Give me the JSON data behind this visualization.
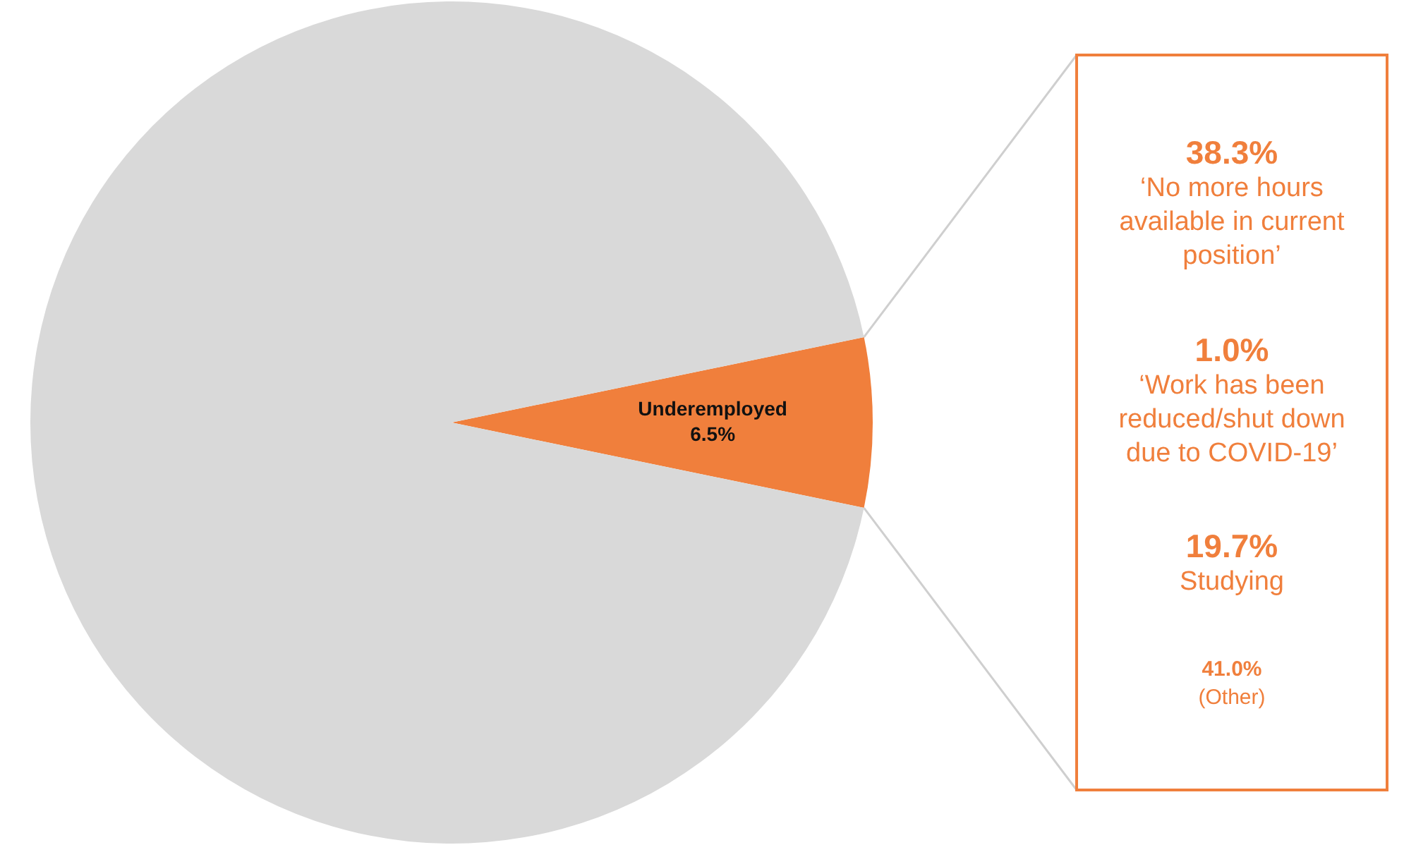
{
  "chart_data": [
    {
      "type": "pie",
      "categories": [
        "Underemployed",
        null
      ],
      "values": [
        6.5,
        93.5
      ],
      "colors": [
        "#f07f3c",
        "#d9d9d9"
      ],
      "value_labels": [
        "6.5%",
        null
      ],
      "legend": false
    },
    {
      "type": "other",
      "categories": [
        "‘No more hours available in current position’",
        "‘Work has been reduced/shut down due to COVID-19’",
        "Studying",
        "(Other)"
      ],
      "value_labels": [
        "38.3%",
        "1.0%",
        "19.7%",
        "41.0%"
      ],
      "color": "#f07f3c"
    }
  ]
}
